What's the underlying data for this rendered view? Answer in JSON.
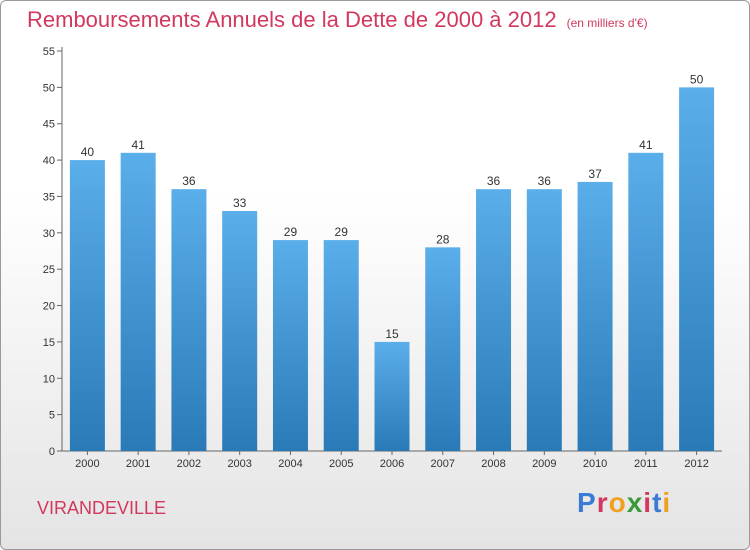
{
  "title": "Remboursements Annuels de la Dette de 2000 à 2012",
  "unit": "(en milliers d'€)",
  "commune": "VIRANDEVILLE",
  "logo": {
    "text": "Proxiti",
    "letter_colors": [
      "#3a7bd5",
      "#d2385e",
      "#f0a020",
      "#3a9a3a",
      "#d2385e",
      "#3a7bd5",
      "#f0a020"
    ]
  },
  "colors": {
    "bar_top": "#5aaeea",
    "bar_bottom": "#2a7ab8",
    "title": "#d2385e"
  },
  "chart_data": {
    "type": "bar",
    "title": "Remboursements Annuels de la Dette de 2000 à 2012",
    "categories": [
      "2000",
      "2001",
      "2002",
      "2003",
      "2004",
      "2005",
      "2006",
      "2007",
      "2008",
      "2009",
      "2010",
      "2011",
      "2012"
    ],
    "values": [
      40,
      41,
      36,
      33,
      29,
      29,
      15,
      28,
      36,
      36,
      37,
      41,
      50
    ],
    "ylim": [
      0,
      55
    ],
    "yticks": [
      0,
      5,
      10,
      15,
      20,
      25,
      30,
      35,
      40,
      45,
      50,
      55
    ],
    "grid": false,
    "data_labels": true
  }
}
